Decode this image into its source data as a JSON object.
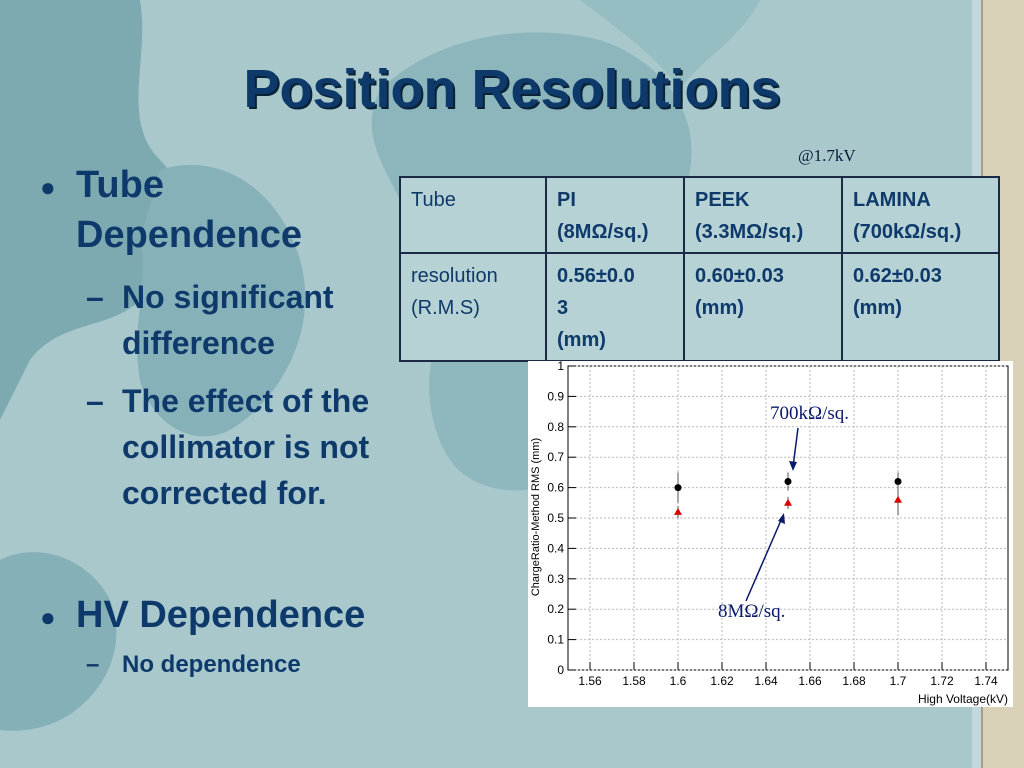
{
  "slide": {
    "title": "Position Resolutions",
    "note": "@1.7kV"
  },
  "bullets": [
    {
      "label": "Tube Dependence",
      "subs": [
        "No significant difference",
        "The effect of the collimator is not corrected for."
      ]
    },
    {
      "label": "HV Dependence",
      "subs": [
        "No dependence"
      ]
    }
  ],
  "table": {
    "header": [
      "Tube",
      "PI",
      "(8MΩ/sq.)",
      "PEEK",
      "(3.3MΩ/sq.)",
      "LAMINA",
      "(700kΩ/sq.)"
    ],
    "row_label": [
      "resolution",
      "(R.M.S)"
    ],
    "row": [
      {
        "value": "0.56±0.0",
        "value2": "3",
        "unit": "(mm)"
      },
      {
        "value": "0.60±0.03",
        "unit": "(mm)"
      },
      {
        "value": "0.62±0.03",
        "unit": "(mm)"
      }
    ]
  },
  "plot_annotations": {
    "top": "700kΩ/sq.",
    "bottom": "8MΩ/sq."
  },
  "colors": {
    "title": "#0e3a6b",
    "background": "#a9c8cc",
    "table_bg": "#b7d2d4",
    "series_black": "#000000",
    "series_red": "#e00000",
    "annotation": "#0a1a6a"
  },
  "chart_data": {
    "type": "scatter",
    "xlabel": "High Voltage(kV)",
    "ylabel": "ChargeRatio-Method RMS (mm)",
    "xlim": [
      1.55,
      1.75
    ],
    "ylim": [
      0,
      1
    ],
    "grid": true,
    "x_ticks": [
      "1.56",
      "1.58",
      "1.6",
      "1.62",
      "1.64",
      "1.66",
      "1.68",
      "1.7",
      "1.72",
      "1.74"
    ],
    "y_ticks": [
      "0",
      "0.1",
      "0.2",
      "0.3",
      "0.4",
      "0.5",
      "0.6",
      "0.7",
      "0.8",
      "0.9",
      "1"
    ],
    "series": [
      {
        "color": "#000000",
        "marker": "circle",
        "points": [
          {
            "x": 1.6,
            "y": 0.6,
            "err": 0.05
          },
          {
            "x": 1.65,
            "y": 0.62,
            "err": 0.03
          },
          {
            "x": 1.7,
            "y": 0.62,
            "err": 0.03
          }
        ]
      },
      {
        "color": "#e00000",
        "marker": "triangle",
        "points": [
          {
            "x": 1.6,
            "y": 0.52,
            "err": 0.02
          },
          {
            "x": 1.65,
            "y": 0.55,
            "err": 0.02
          },
          {
            "x": 1.7,
            "y": 0.56,
            "err": 0.05
          }
        ]
      }
    ]
  }
}
